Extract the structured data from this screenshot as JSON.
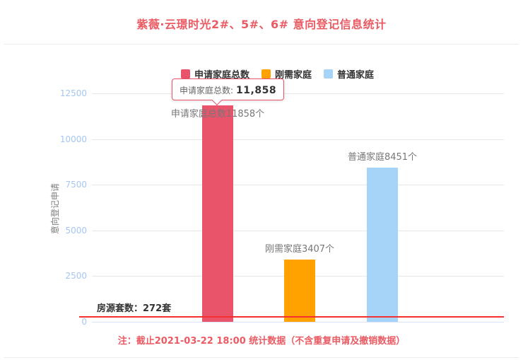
{
  "page": {
    "title": "紫薇·云璟时光2#、5#、6# 意向登记信息统计",
    "footnote": "注：截止2021-03-22 18:00 统计数据（不含重复申请及撤销数据）"
  },
  "colors": {
    "title_red": "#ea5b63",
    "bar_red": "#e9546b",
    "bar_orange": "#ffa200",
    "bar_blue": "#a6d3f8",
    "marker_red": "#f53030",
    "tick_blue": "#a4c7f2"
  },
  "tooltip": {
    "label": "申请家庭总数:",
    "value": "11,858"
  },
  "chart_data": {
    "type": "bar",
    "title": "紫薇·云璟时光2#、5#、6# 意向登记信息统计",
    "xlabel": "",
    "ylabel": "意向登记申请",
    "ylim": [
      0,
      13000
    ],
    "grid": true,
    "legend_position": "top-center",
    "yticks": [
      "0",
      "2500",
      "5000",
      "7500",
      "10000",
      "12500"
    ],
    "legend": [
      {
        "label": "申请家庭总数",
        "color": "#e9546b"
      },
      {
        "label": "刚需家庭",
        "color": "#ffa200"
      },
      {
        "label": "普通家庭",
        "color": "#a6d3f8"
      }
    ],
    "series": [
      {
        "name": "申请家庭总数",
        "value": 11858,
        "color": "#e9546b",
        "label": "申请家庭总数11858个",
        "label_inside": true
      },
      {
        "name": "刚需家庭",
        "value": 3407,
        "color": "#ffa200",
        "label": "刚需家庭3407个",
        "label_inside": false
      },
      {
        "name": "普通家庭",
        "value": 8451,
        "color": "#a6d3f8",
        "label": "普通家庭8451个",
        "label_inside": false
      }
    ],
    "marker_line": {
      "value": 272,
      "label": "房源套数：272套"
    }
  }
}
